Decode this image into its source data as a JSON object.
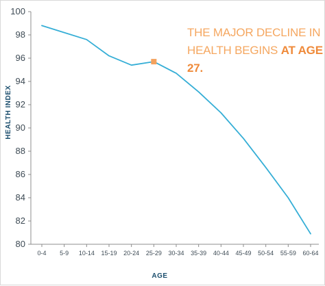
{
  "colors": {
    "line": "#35aed6",
    "marker": "#f4a25e",
    "axis_title": "#1c4f6e",
    "tick_label": "#3d4a54",
    "axis_line": "#8c8c8c",
    "annotation_text": "#f5a760",
    "annotation_emphasis": "#ef8a3a"
  },
  "annotation": {
    "line1": "THE MAJOR DECLINE IN",
    "line2_plain": "HEALTH BEGINS ",
    "line2_bold": "AT AGE 27."
  },
  "chart_data": {
    "type": "line",
    "title": "",
    "xlabel": "AGE",
    "ylabel": "HEALTH INDEX",
    "ylim": [
      80,
      100
    ],
    "yticks": [
      80,
      82,
      84,
      86,
      88,
      90,
      92,
      94,
      96,
      98,
      100
    ],
    "categories": [
      "0-4",
      "5-9",
      "10-14",
      "15-19",
      "20-24",
      "25-29",
      "30-34",
      "35-39",
      "40-44",
      "45-49",
      "50-54",
      "55-59",
      "60-64"
    ],
    "series": [
      {
        "values": [
          98.8,
          98.2,
          97.6,
          96.2,
          95.4,
          95.7,
          94.7,
          93.1,
          91.3,
          89.1,
          86.6,
          84.0,
          80.9
        ]
      }
    ],
    "highlight": {
      "category": "25-29",
      "value": 95.7
    },
    "grid": false,
    "legend": "none"
  }
}
